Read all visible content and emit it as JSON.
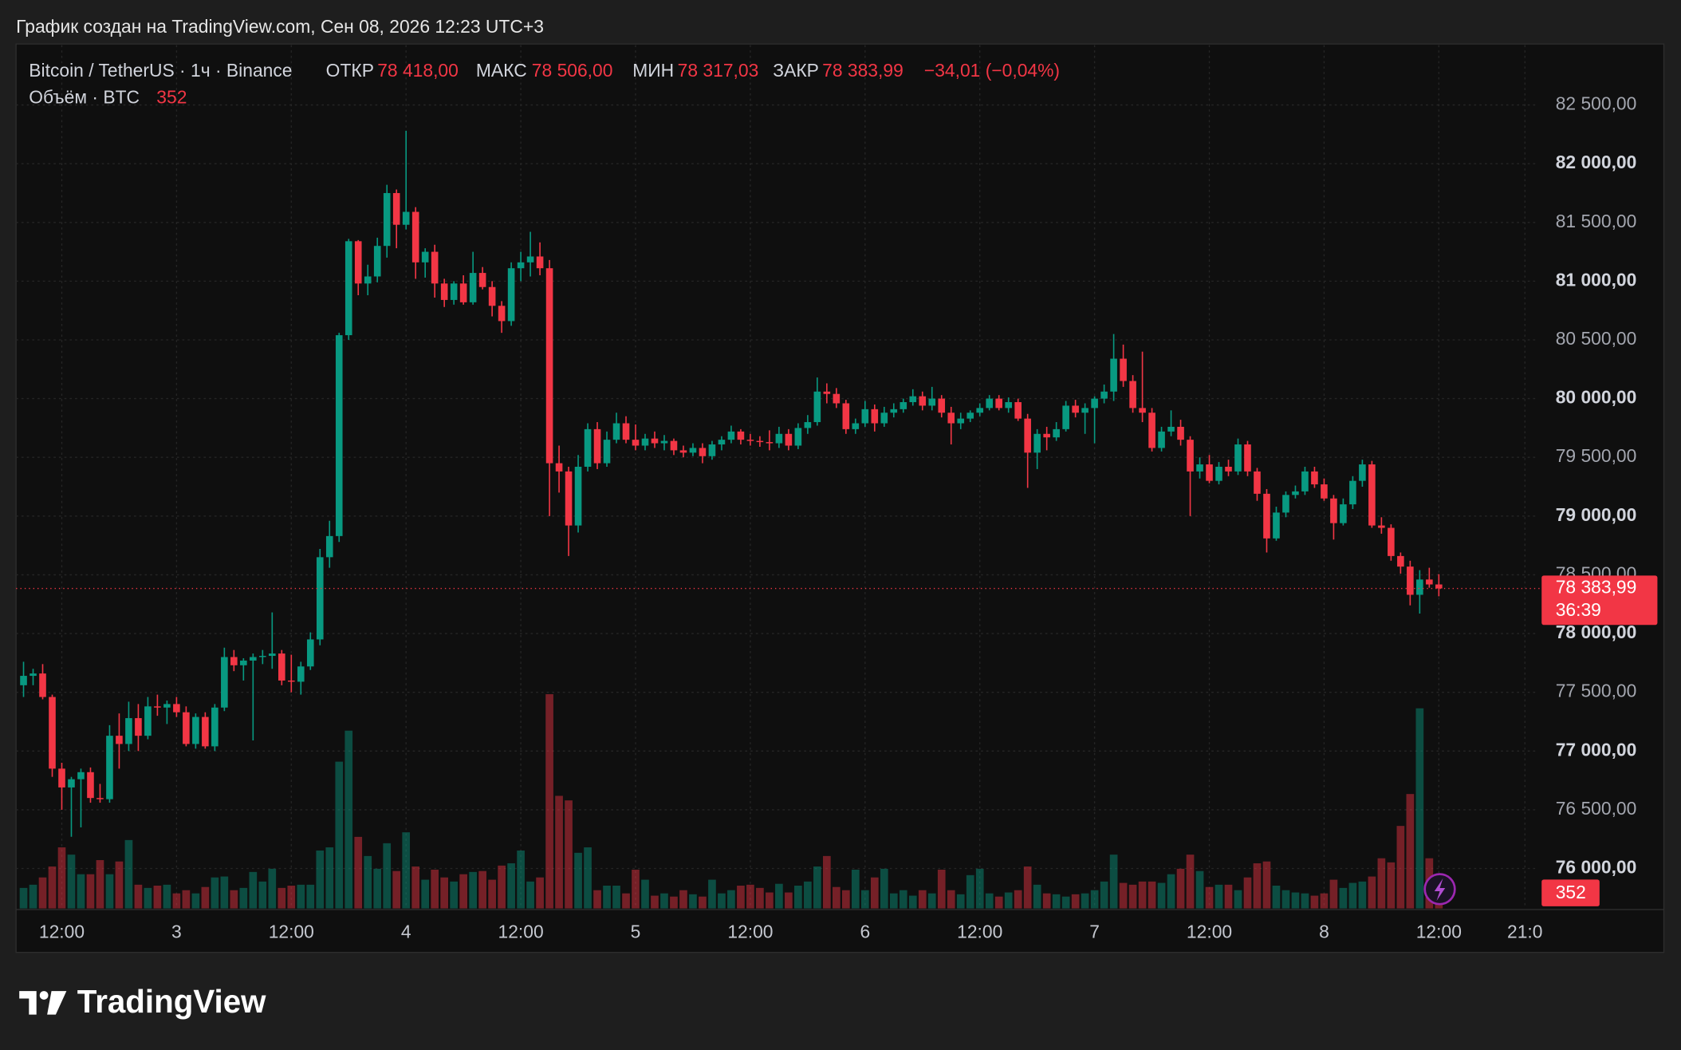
{
  "header": "График создан на TradingView.com, Сен 08, 2026 12:23 UTC+3",
  "brand": "TradingView",
  "chart_data": {
    "type": "candlestick",
    "legend": {
      "symbol": "Bitcoin / TetherUS · 1ч · Binance",
      "field_labels": [
        "ОТКР",
        "МАКС",
        "МИН",
        "ЗАКР"
      ],
      "change": {
        "value": -34.01,
        "label": "−34,01 (−0,04%)"
      },
      "volume_title": "Объём · BTC"
    },
    "legend_value_labels": [
      "78 418,00",
      "78 506,00",
      "78 317,03",
      "78 383,99"
    ],
    "countdown": "36:39",
    "up_color": "#089981",
    "down_color": "#f23645",
    "categories": [
      null,
      null,
      null,
      null,
      "12:00",
      null,
      null,
      null,
      null,
      null,
      null,
      null,
      null,
      null,
      null,
      null,
      "3",
      null,
      null,
      null,
      null,
      null,
      null,
      null,
      null,
      null,
      null,
      null,
      "12:00",
      null,
      null,
      null,
      null,
      null,
      null,
      null,
      null,
      null,
      null,
      null,
      "4",
      null,
      null,
      null,
      null,
      null,
      null,
      null,
      null,
      null,
      null,
      null,
      "12:00",
      null,
      null,
      null,
      null,
      null,
      null,
      null,
      null,
      null,
      null,
      null,
      "5",
      null,
      null,
      null,
      null,
      null,
      null,
      null,
      null,
      null,
      null,
      null,
      "12:00",
      null,
      null,
      null,
      null,
      null,
      null,
      null,
      null,
      null,
      null,
      null,
      "6",
      null,
      null,
      null,
      null,
      null,
      null,
      null,
      null,
      null,
      null,
      null,
      "12:00",
      null,
      null,
      null,
      null,
      null,
      null,
      null,
      null,
      null,
      null,
      null,
      "7",
      null,
      null,
      null,
      null,
      null,
      null,
      null,
      null,
      null,
      null,
      null,
      "12:00",
      null,
      null,
      null,
      null,
      null,
      null,
      null,
      null,
      null,
      null,
      null,
      "8",
      null,
      null,
      null,
      null,
      null,
      null,
      null,
      null,
      null,
      null,
      null,
      "12:00",
      null,
      null,
      null,
      null,
      null,
      null,
      null,
      null,
      "21:0"
    ],
    "open": [
      77560,
      77640,
      77660,
      77460,
      76850,
      76690,
      76760,
      76820,
      76600,
      76590,
      77130,
      77060,
      77280,
      77130,
      77380,
      77370,
      77400,
      77330,
      77060,
      77290,
      77040,
      77370,
      77800,
      77730,
      77770,
      77800,
      77810,
      77830,
      77600,
      77590,
      77720,
      77950,
      78650,
      78830,
      80540,
      81340,
      80980,
      81040,
      81300,
      81750,
      81480,
      81590,
      81160,
      81250,
      80980,
      80840,
      80980,
      80820,
      81070,
      80950,
      80790,
      80660,
      81110,
      81160,
      81210,
      81110,
      79450,
      79380,
      78920,
      79420,
      79740,
      79450,
      79650,
      79790,
      79650,
      79600,
      79660,
      79620,
      79640,
      79560,
      79540,
      79580,
      79510,
      79610,
      79650,
      79720,
      79650,
      79640,
      79630,
      79620,
      79700,
      79600,
      79750,
      79800,
      80060,
      80040,
      79960,
      79740,
      79790,
      79910,
      79790,
      79880,
      79910,
      79970,
      80020,
      79940,
      80000,
      79880,
      79790,
      79830,
      79880,
      79920,
      80000,
      79920,
      79970,
      79830,
      79540,
      79700,
      79670,
      79740,
      79940,
      79880,
      79920,
      80000,
      80060,
      80340,
      80150,
      79920,
      79880,
      79580,
      79720,
      79760,
      79650,
      79380,
      79440,
      79300,
      79420,
      79380,
      79610,
      79380,
      79190,
      78810,
      79030,
      79180,
      79210,
      79380,
      79270,
      79150,
      78940,
      79100,
      79300,
      79440,
      78920,
      78900,
      78660,
      78570,
      78330,
      78460,
      78418,
      null,
      null,
      null,
      null,
      null,
      null,
      null,
      null,
      null
    ],
    "high": [
      77760,
      77700,
      77740,
      77480,
      76900,
      76780,
      76850,
      76860,
      76720,
      77220,
      77320,
      77420,
      77400,
      77460,
      77480,
      77430,
      77460,
      77380,
      77320,
      77330,
      77400,
      77880,
      77860,
      77790,
      77830,
      77860,
      78180,
      77860,
      77820,
      77760,
      78010,
      78720,
      78960,
      80560,
      81360,
      81350,
      81140,
      81370,
      81820,
      81780,
      82280,
      81630,
      81280,
      81310,
      81020,
      81000,
      81050,
      81250,
      81120,
      81000,
      80830,
      81160,
      81250,
      81420,
      81330,
      81180,
      79600,
      79420,
      79520,
      79790,
      79800,
      79720,
      79880,
      79850,
      79780,
      79700,
      79720,
      79690,
      79660,
      79600,
      79620,
      79620,
      79640,
      79680,
      79770,
      79740,
      79700,
      79680,
      79730,
      79760,
      79740,
      79790,
      79860,
      80180,
      80130,
      80090,
      79990,
      79830,
      79980,
      79950,
      79930,
      79960,
      80000,
      80080,
      80060,
      80100,
      80030,
      79930,
      79880,
      79900,
      79960,
      80030,
      80030,
      80010,
      80000,
      79870,
      79740,
      79760,
      79800,
      79980,
      79990,
      79960,
      80020,
      80120,
      80550,
      80460,
      80200,
      80400,
      79920,
      79760,
      79900,
      79820,
      79680,
      79500,
      79520,
      79460,
      79480,
      79660,
      79640,
      79410,
      79230,
      79080,
      79210,
      79260,
      79420,
      79420,
      79320,
      79180,
      79150,
      79340,
      79480,
      79470,
      78990,
      78930,
      78690,
      78620,
      78540,
      78560,
      78506,
      null,
      null,
      null,
      null,
      null,
      null,
      null,
      null,
      null
    ],
    "low": [
      77460,
      77560,
      77440,
      76780,
      76500,
      76270,
      76350,
      76560,
      76560,
      76560,
      76850,
      77000,
      77000,
      77100,
      77300,
      77230,
      77290,
      77040,
      77020,
      77020,
      77000,
      77340,
      77680,
      77600,
      77090,
      77740,
      77700,
      77560,
      77500,
      77480,
      77690,
      77900,
      78560,
      78780,
      80500,
      80880,
      80880,
      80990,
      81200,
      81280,
      81440,
      81020,
      81030,
      80860,
      80780,
      80800,
      80800,
      80800,
      80930,
      80700,
      80560,
      80620,
      81000,
      81040,
      81050,
      79000,
      79200,
      78660,
      78860,
      79380,
      79400,
      79420,
      79620,
      79620,
      79560,
      79560,
      79580,
      79560,
      79520,
      79500,
      79510,
      79450,
      79480,
      79560,
      79620,
      79610,
      79600,
      79590,
      79560,
      79580,
      79560,
      79570,
      79700,
      79770,
      79960,
      79920,
      79700,
      79700,
      79760,
      79720,
      79760,
      79840,
      79880,
      79940,
      79900,
      79900,
      79840,
      79610,
      79740,
      79800,
      79850,
      79900,
      79900,
      79880,
      79810,
      79240,
      79400,
      79560,
      79640,
      79720,
      79840,
      79700,
      79620,
      79960,
      79980,
      80100,
      79880,
      79800,
      79550,
      79550,
      79680,
      79600,
      79000,
      79320,
      79280,
      79270,
      79340,
      79350,
      79340,
      79130,
      78690,
      78790,
      78990,
      79150,
      79180,
      79240,
      79130,
      78800,
      78920,
      79060,
      79250,
      78900,
      78850,
      78620,
      78510,
      78240,
      78170,
      78390,
      78317.03,
      null,
      null,
      null,
      null,
      null,
      null,
      null,
      null,
      null
    ],
    "close": [
      77640,
      77660,
      77460,
      76850,
      76690,
      76760,
      76820,
      76600,
      76590,
      77130,
      77060,
      77280,
      77130,
      77380,
      77370,
      77400,
      77330,
      77060,
      77290,
      77040,
      77370,
      77800,
      77730,
      77770,
      77800,
      77810,
      77830,
      77600,
      77590,
      77720,
      77950,
      78650,
      78830,
      80540,
      81340,
      80980,
      81040,
      81300,
      81750,
      81480,
      81590,
      81160,
      81250,
      80980,
      80840,
      80980,
      80820,
      81070,
      80950,
      80790,
      80660,
      81110,
      81160,
      81210,
      81110,
      79450,
      79380,
      78920,
      79420,
      79740,
      79450,
      79650,
      79790,
      79650,
      79600,
      79660,
      79620,
      79640,
      79560,
      79540,
      79580,
      79510,
      79610,
      79650,
      79720,
      79650,
      79640,
      79630,
      79620,
      79700,
      79600,
      79750,
      79800,
      80060,
      80040,
      79960,
      79740,
      79790,
      79910,
      79790,
      79880,
      79910,
      79970,
      80020,
      79940,
      80000,
      79880,
      79790,
      79830,
      79880,
      79920,
      80000,
      79920,
      79970,
      79830,
      79540,
      79700,
      79670,
      79740,
      79940,
      79880,
      79920,
      80000,
      80060,
      80340,
      80150,
      79920,
      79880,
      79580,
      79720,
      79760,
      79650,
      79380,
      79440,
      79300,
      79420,
      79380,
      79610,
      79380,
      79190,
      78810,
      79030,
      79180,
      79210,
      79380,
      79270,
      79150,
      78940,
      79100,
      79300,
      79440,
      78920,
      78900,
      78660,
      78570,
      78330,
      78460,
      78418,
      78383.99,
      null,
      null,
      null,
      null,
      null,
      null,
      null,
      null,
      null
    ],
    "volume": [
      450,
      520,
      680,
      920,
      1340,
      1180,
      750,
      750,
      1060,
      750,
      1030,
      1500,
      520,
      450,
      500,
      520,
      330,
      400,
      330,
      470,
      680,
      700,
      400,
      450,
      800,
      590,
      870,
      450,
      500,
      520,
      520,
      1270,
      1340,
      3220,
      3900,
      1570,
      1150,
      870,
      1430,
      820,
      1670,
      920,
      630,
      850,
      680,
      590,
      750,
      800,
      820,
      630,
      940,
      990,
      1270,
      590,
      680,
      4700,
      2470,
      2370,
      1220,
      1340,
      400,
      500,
      500,
      330,
      850,
      630,
      280,
      330,
      260,
      400,
      310,
      260,
      630,
      330,
      400,
      500,
      520,
      450,
      350,
      540,
      350,
      500,
      590,
      920,
      1150,
      470,
      400,
      850,
      400,
      680,
      870,
      330,
      400,
      280,
      400,
      330,
      850,
      400,
      310,
      730,
      870,
      330,
      260,
      350,
      400,
      920,
      520,
      330,
      310,
      260,
      310,
      330,
      400,
      590,
      1180,
      560,
      520,
      590,
      590,
      560,
      750,
      870,
      1180,
      820,
      470,
      520,
      520,
      400,
      680,
      990,
      1030,
      500,
      400,
      350,
      330,
      280,
      330,
      630,
      450,
      560,
      590,
      700,
      1100,
      1010,
      1810,
      2510,
      4390,
      1100,
      352,
      null,
      null,
      null,
      null,
      null,
      null,
      null,
      null,
      null
    ],
    "ylim": [
      75660,
      83010
    ],
    "yticks": [
      {
        "value": 76000,
        "label": "76 000,00"
      },
      {
        "value": 76500,
        "label": "76 500,00"
      },
      {
        "value": 77000,
        "label": "77 000,00"
      },
      {
        "value": 77500,
        "label": "77 500,00"
      },
      {
        "value": 78000,
        "label": "78 000,00"
      },
      {
        "value": 78500,
        "label": "78 500,00"
      },
      {
        "value": 79000,
        "label": "79 000,00"
      },
      {
        "value": 79500,
        "label": "79 500,00"
      },
      {
        "value": 80000,
        "label": "80 000,00"
      },
      {
        "value": 80500,
        "label": "80 500,00"
      },
      {
        "value": 81000,
        "label": "81 000,00"
      },
      {
        "value": 81500,
        "label": "81 500,00"
      },
      {
        "value": 82000,
        "label": "82 000,00"
      },
      {
        "value": 82500,
        "label": "82 500,00"
      }
    ],
    "y2lim": [
      0,
      4800
    ],
    "grid": true
  }
}
